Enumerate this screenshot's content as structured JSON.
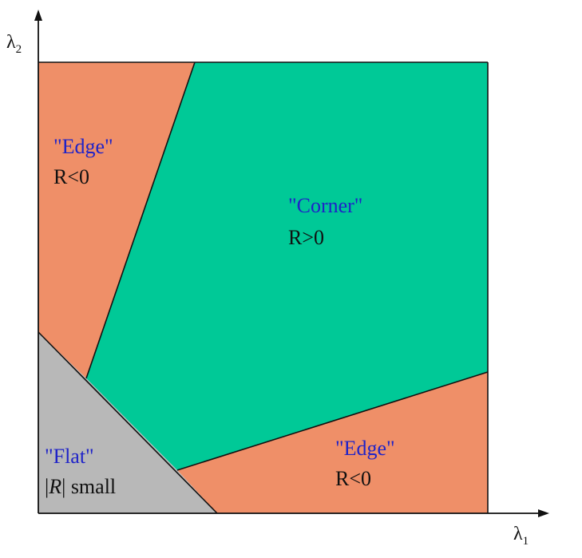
{
  "axes": {
    "x_label": "λ",
    "x_sub": "1",
    "y_label": "λ",
    "y_sub": "2"
  },
  "regions": {
    "edge_top_left": {
      "name": "\"Edge\"",
      "condition": "R<0",
      "color": "#ef8f68"
    },
    "corner": {
      "name": "\"Corner\"",
      "condition": "R>0",
      "color": "#00c997"
    },
    "edge_bottom_right": {
      "name": "\"Edge\"",
      "condition": "R<0",
      "color": "#ef8f68"
    },
    "flat": {
      "name": "\"Flat\"",
      "condition_prefix": "|",
      "condition_var": "R",
      "condition_suffix": "| small",
      "color": "#b8b8b8"
    }
  }
}
